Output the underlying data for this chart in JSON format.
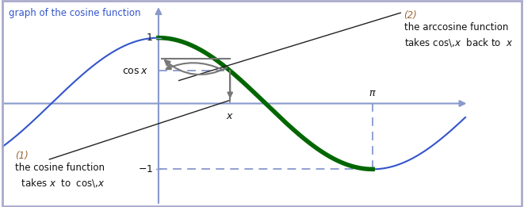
{
  "bg_color": "#ffffff",
  "border_color": "#aaaacc",
  "axis_color": "#8899cc",
  "cosine_color": "#3355cc",
  "arccosine_color": "#006600",
  "arrow_color": "#222222",
  "gray_arrow_color": "#777777",
  "dashed_color": "#8899cc",
  "text_color_blue": "#3355cc",
  "text_color_brown": "#996633",
  "text_color_black": "#111111",
  "xlim": [
    -2.3,
    4.6
  ],
  "ylim": [
    -1.55,
    1.55
  ],
  "x_point": 1.05,
  "pi_val": 3.14159265358979,
  "figsize": [
    6.61,
    2.61
  ],
  "dpi": 100
}
